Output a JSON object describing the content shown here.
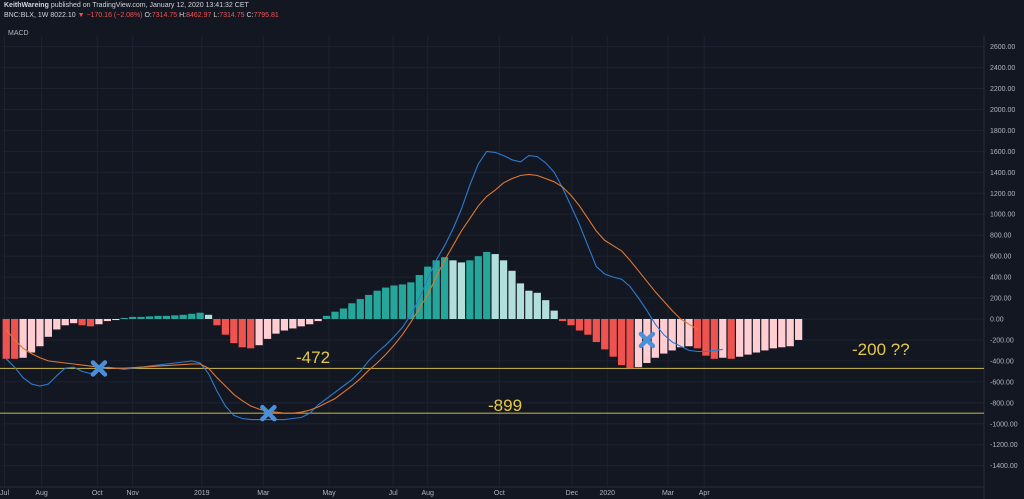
{
  "header": {
    "author": "KeithWareing",
    "published": "published on TradingView.com, January 12, 2020 13:41:32 CET",
    "symbol": "BNC:BLX, 1W",
    "price": "8022.10",
    "change": "−170.16 (−2.08%)",
    "open_label": "O:",
    "open": "7314.75",
    "high_label": "H:",
    "high": "8462.97",
    "low_label": "L:",
    "low": "7314.75",
    "close_label": "C:",
    "close": "7795.81"
  },
  "indicator_label": "MACD",
  "chart_data": {
    "type": "bar",
    "ylim": [
      -1500,
      2700
    ],
    "y_ticks": [
      2600,
      2400,
      2200,
      2000,
      1800,
      1600,
      1400,
      1200,
      1000,
      800,
      600,
      400,
      200,
      0,
      -200,
      -400,
      -600,
      -800,
      -1000,
      -1200,
      -1400
    ],
    "x_ticks": [
      {
        "label": "Jul",
        "x": 0.3
      },
      {
        "label": "Aug",
        "x": 4.7
      },
      {
        "label": "Oct",
        "x": 11.3
      },
      {
        "label": "Nov",
        "x": 15.5
      },
      {
        "label": "2019",
        "x": 23.7
      },
      {
        "label": "Mar",
        "x": 31.0
      },
      {
        "label": "May",
        "x": 38.8
      },
      {
        "label": "Jul",
        "x": 46.4
      },
      {
        "label": "Aug",
        "x": 50.5
      },
      {
        "label": "Oct",
        "x": 59.0
      },
      {
        "label": "Dec",
        "x": 67.6
      },
      {
        "label": "2020",
        "x": 71.8
      },
      {
        "label": "Mar",
        "x": 79.0
      },
      {
        "label": "Apr",
        "x": 83.3
      }
    ],
    "histogram": [
      -380,
      -380,
      -370,
      -320,
      -260,
      -170,
      -100,
      -60,
      -40,
      -60,
      -70,
      -50,
      -20,
      -10,
      10,
      20,
      20,
      25,
      30,
      30,
      35,
      40,
      50,
      60,
      40,
      -60,
      -150,
      -230,
      -270,
      -280,
      -250,
      -190,
      -140,
      -110,
      -90,
      -70,
      -50,
      -20,
      30,
      70,
      100,
      150,
      190,
      230,
      270,
      300,
      320,
      330,
      350,
      420,
      500,
      560,
      590,
      560,
      540,
      560,
      600,
      640,
      620,
      560,
      460,
      340,
      270,
      250,
      180,
      80,
      -20,
      -60,
      -110,
      -150,
      -220,
      -290,
      -360,
      -440,
      -470,
      -460,
      -420,
      -370,
      -330,
      -300,
      -270,
      -260,
      -280,
      -350,
      -380,
      -370,
      -380,
      -360,
      -340,
      -320,
      -300,
      -280,
      -270,
      -260,
      -200
    ],
    "hist_colors": [
      "#ef5350",
      "#ffcdd2",
      "#26a69a",
      "#b2dfdb"
    ],
    "series": [
      {
        "color": "#2e7bd0",
        "values": [
          -380,
          -460,
          -560,
          -620,
          -640,
          -620,
          -540,
          -470,
          -460,
          -500,
          -520,
          -490,
          -460,
          -470,
          -480,
          -470,
          -460,
          -450,
          -440,
          -430,
          -420,
          -410,
          -400,
          -420,
          -520,
          -690,
          -830,
          -920,
          -950,
          -960,
          -960,
          -960,
          -960,
          -960,
          -950,
          -940,
          -900,
          -820,
          -760,
          -700,
          -640,
          -580,
          -500,
          -400,
          -320,
          -250,
          -170,
          -80,
          40,
          200,
          380,
          560,
          700,
          860,
          1050,
          1280,
          1480,
          1600,
          1590,
          1560,
          1520,
          1500,
          1560,
          1550,
          1490,
          1400,
          1250,
          1080,
          900,
          700,
          500,
          430,
          400,
          380,
          310,
          200,
          80,
          -50,
          -150,
          -220,
          -260,
          -300,
          -310,
          -310,
          -300,
          -290
        ]
      },
      {
        "color": "#e0762f",
        "values": [
          -100,
          -200,
          -280,
          -330,
          -370,
          -400,
          -410,
          -420,
          -430,
          -440,
          -450,
          -460,
          -465,
          -470,
          -470,
          -465,
          -460,
          -455,
          -450,
          -445,
          -440,
          -435,
          -430,
          -430,
          -470,
          -560,
          -640,
          -720,
          -780,
          -830,
          -860,
          -880,
          -890,
          -899,
          -899,
          -890,
          -870,
          -840,
          -800,
          -760,
          -700,
          -640,
          -570,
          -490,
          -420,
          -340,
          -250,
          -150,
          -30,
          100,
          230,
          400,
          560,
          700,
          840,
          960,
          1080,
          1170,
          1230,
          1300,
          1340,
          1370,
          1380,
          1370,
          1340,
          1310,
          1260,
          1180,
          1080,
          960,
          840,
          750,
          700,
          650,
          560,
          460,
          360,
          260,
          170,
          80,
          0,
          -50,
          -100
        ]
      }
    ]
  },
  "annotations": {
    "label_472": "-472",
    "label_899": "-899",
    "label_200": "-200 ??"
  },
  "levels": [
    -472,
    -899
  ],
  "markers": [
    {
      "x": 11.5,
      "y": -472
    },
    {
      "x": 31.6,
      "y": -899
    },
    {
      "x": 76.5,
      "y": -200
    }
  ]
}
